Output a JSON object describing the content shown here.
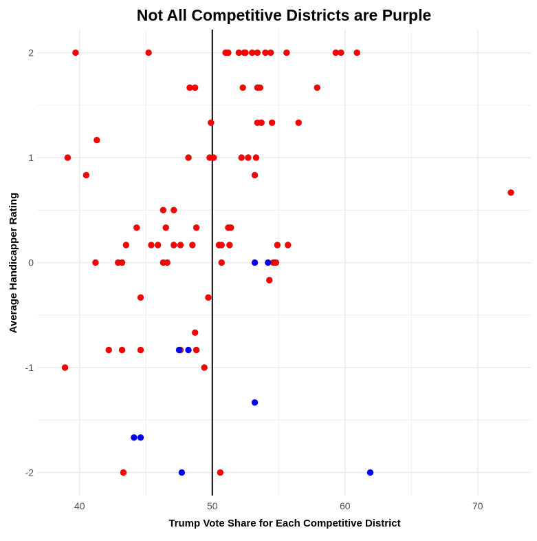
{
  "chart_data": {
    "type": "scatter",
    "title": "Not All Competitive Districts are Purple",
    "xlabel": "Trump Vote Share for Each Competitive District",
    "ylabel": "Average Handicapper Rating",
    "xlim": [
      36.8,
      74.0
    ],
    "ylim": [
      -2.22,
      2.22
    ],
    "x_ticks": [
      40,
      50,
      60,
      70
    ],
    "x_tick_labels": [
      "40",
      "50",
      "60",
      "70"
    ],
    "y_ticks": [
      -2,
      -1,
      0,
      1,
      2
    ],
    "y_tick_labels": [
      "-2",
      "-1",
      "0",
      "1",
      "2"
    ],
    "x_minor_ticks": [
      45,
      55,
      65
    ],
    "y_minor_ticks": [
      -1.5,
      -0.5,
      0.5,
      1.5
    ],
    "grid": true,
    "reference_line": {
      "orientation": "vertical",
      "x": 50,
      "color": "#000000"
    },
    "colors": {
      "red": "#ff0000",
      "blue": "#0000ff",
      "grid": "#ebebeb"
    },
    "series": [
      {
        "name": "red",
        "color": "#ff0000",
        "points": [
          [
            39.7,
            2
          ],
          [
            45.2,
            2
          ],
          [
            51.0,
            2
          ],
          [
            51.2,
            2
          ],
          [
            52.0,
            2
          ],
          [
            52.4,
            2
          ],
          [
            52.5,
            2
          ],
          [
            53.0,
            2
          ],
          [
            53.4,
            2
          ],
          [
            54.0,
            2
          ],
          [
            54.4,
            2
          ],
          [
            55.6,
            2
          ],
          [
            59.3,
            2
          ],
          [
            59.7,
            2
          ],
          [
            60.9,
            2
          ],
          [
            48.3,
            1.667
          ],
          [
            48.7,
            1.667
          ],
          [
            52.3,
            1.667
          ],
          [
            53.4,
            1.667
          ],
          [
            53.6,
            1.667
          ],
          [
            57.9,
            1.667
          ],
          [
            49.9,
            1.333
          ],
          [
            53.4,
            1.333
          ],
          [
            53.7,
            1.333
          ],
          [
            54.5,
            1.333
          ],
          [
            56.5,
            1.333
          ],
          [
            41.3,
            1.167
          ],
          [
            39.1,
            1
          ],
          [
            48.2,
            1
          ],
          [
            49.8,
            1
          ],
          [
            50.1,
            1
          ],
          [
            52.2,
            1
          ],
          [
            52.7,
            1
          ],
          [
            53.3,
            1
          ],
          [
            40.5,
            0.833
          ],
          [
            53.2,
            0.833
          ],
          [
            72.5,
            0.667
          ],
          [
            46.3,
            0.5
          ],
          [
            47.1,
            0.5
          ],
          [
            44.3,
            0.333
          ],
          [
            46.5,
            0.333
          ],
          [
            48.8,
            0.333
          ],
          [
            51.2,
            0.333
          ],
          [
            51.4,
            0.333
          ],
          [
            43.5,
            0.167
          ],
          [
            45.4,
            0.167
          ],
          [
            45.9,
            0.167
          ],
          [
            47.1,
            0.167
          ],
          [
            47.6,
            0.167
          ],
          [
            48.5,
            0.167
          ],
          [
            50.5,
            0.167
          ],
          [
            50.7,
            0.167
          ],
          [
            51.3,
            0.167
          ],
          [
            54.9,
            0.167
          ],
          [
            55.7,
            0.167
          ],
          [
            41.2,
            0
          ],
          [
            42.9,
            0
          ],
          [
            43.2,
            0
          ],
          [
            46.3,
            0
          ],
          [
            46.6,
            0
          ],
          [
            50.7,
            0
          ],
          [
            54.6,
            0
          ],
          [
            54.8,
            0
          ],
          [
            54.3,
            -0.167
          ],
          [
            44.6,
            -0.333
          ],
          [
            49.7,
            -0.333
          ],
          [
            48.7,
            -0.667
          ],
          [
            42.2,
            -0.833
          ],
          [
            43.2,
            -0.833
          ],
          [
            44.6,
            -0.833
          ],
          [
            47.6,
            -0.833
          ],
          [
            48.8,
            -0.833
          ],
          [
            38.9,
            -1
          ],
          [
            49.4,
            -1
          ],
          [
            43.3,
            -2
          ],
          [
            50.6,
            -2
          ]
        ]
      },
      {
        "name": "blue",
        "color": "#0000ff",
        "points": [
          [
            53.2,
            0
          ],
          [
            54.2,
            0
          ],
          [
            47.5,
            -0.833
          ],
          [
            48.2,
            -0.833
          ],
          [
            53.2,
            -1.333
          ],
          [
            44.1,
            -1.667
          ],
          [
            44.6,
            -1.667
          ],
          [
            47.7,
            -2
          ],
          [
            61.9,
            -2
          ]
        ]
      }
    ]
  }
}
